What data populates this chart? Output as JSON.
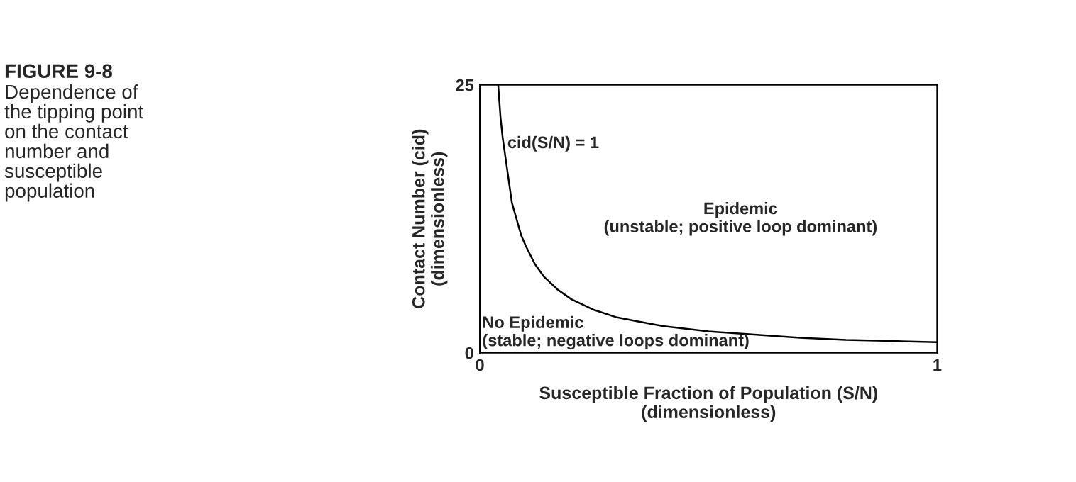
{
  "chart_data": {
    "type": "line",
    "title": "FIGURE 9-8",
    "subtitle": "Dependence of\nthe tipping point\non the contact\nnumber and\nsusceptible\npopulation",
    "xlabel": "Susceptible Fraction of Population (S/N)\n(dimensionless)",
    "ylabel": "Contact Number (cid)\n(dimensionless)",
    "series": [
      {
        "color": "#000000",
        "x": [
          0.04,
          0.045,
          0.05,
          0.06,
          0.07,
          0.08,
          0.09,
          0.1,
          0.12,
          0.14,
          0.17,
          0.2,
          0.25,
          0.3,
          0.35,
          0.4,
          0.5,
          0.6,
          0.7,
          0.8,
          0.9,
          1
        ],
        "values": [
          25,
          22,
          20,
          17,
          14,
          12.5,
          11,
          10,
          8.3,
          7.1,
          5.9,
          5,
          4,
          3.3,
          2.9,
          2.5,
          2,
          1.7,
          1.4,
          1.2,
          1.1,
          1
        ]
      }
    ],
    "xlim": [
      0,
      1
    ],
    "ylim": [
      0,
      25
    ],
    "xticks": [
      0,
      1
    ],
    "yticks": [
      0,
      25
    ],
    "grid": false,
    "legend": false,
    "marker": "none",
    "line_style": "solid",
    "annotations": [
      {
        "text": "cid(S/N) = 1",
        "x": 0.06,
        "y": 19.5
      },
      "Epidemic\n(unstable; positive loop dominant)",
      "No Epidemic\n(stable; negative loops dominant)"
    ]
  }
}
